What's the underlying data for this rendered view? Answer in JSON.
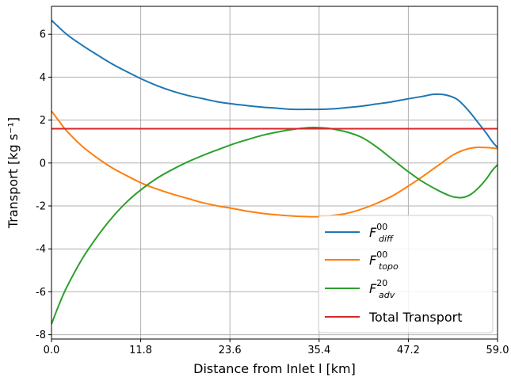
{
  "chart_data": {
    "type": "line",
    "xlabel": "Distance from Inlet l [km]",
    "ylabel": "Transport [kg s⁻¹]",
    "xlim": [
      0,
      59
    ],
    "ylim": [
      -8.2,
      7.3
    ],
    "xticks": [
      0,
      11.8,
      23.6,
      35.4,
      47.2,
      59
    ],
    "xtick_labels": [
      "0.0",
      "11.8",
      "23.6",
      "35.4",
      "47.2",
      "59.0"
    ],
    "yticks": [
      -8,
      -6,
      -4,
      -2,
      0,
      2,
      4,
      6
    ],
    "ytick_labels": [
      "-8",
      "-6",
      "-4",
      "-2",
      "0",
      "2",
      "4",
      "6"
    ],
    "grid": true,
    "legend_position": "lower-right",
    "series": [
      {
        "name": "F_diff^00",
        "legend": {
          "base": "F",
          "sup": "00",
          "sub": "diff"
        },
        "color": "#1f77b4",
        "x": [
          0,
          2,
          4,
          6,
          8,
          10,
          12,
          14,
          16,
          18,
          20,
          22,
          24,
          26,
          28,
          30,
          32,
          34,
          35.4,
          37,
          39,
          41,
          43,
          45,
          47,
          49,
          50.5,
          52,
          53.5,
          54.5,
          55.5,
          56.5,
          57.5,
          58.3,
          59
        ],
        "y": [
          6.65,
          6.0,
          5.5,
          5.05,
          4.62,
          4.25,
          3.9,
          3.6,
          3.35,
          3.15,
          3.0,
          2.85,
          2.75,
          2.67,
          2.6,
          2.55,
          2.5,
          2.5,
          2.5,
          2.52,
          2.58,
          2.65,
          2.75,
          2.85,
          2.98,
          3.1,
          3.2,
          3.18,
          3.0,
          2.7,
          2.3,
          1.85,
          1.4,
          1.0,
          0.72
        ]
      },
      {
        "name": "F_topo^00",
        "legend": {
          "base": "F",
          "sup": "00",
          "sub": "topo"
        },
        "color": "#ff7f0e",
        "x": [
          0,
          1,
          2,
          4,
          6,
          8,
          10,
          12,
          14,
          16,
          18,
          20,
          22,
          24,
          26,
          28,
          30,
          32,
          34,
          35.4,
          37,
          39,
          41,
          43,
          45,
          47,
          49,
          51,
          53,
          54.5,
          56,
          57.5,
          58.3,
          59
        ],
        "y": [
          2.42,
          1.95,
          1.5,
          0.8,
          0.25,
          -0.22,
          -0.6,
          -0.95,
          -1.22,
          -1.45,
          -1.65,
          -1.85,
          -2.0,
          -2.12,
          -2.25,
          -2.35,
          -2.42,
          -2.47,
          -2.5,
          -2.5,
          -2.45,
          -2.35,
          -2.15,
          -1.88,
          -1.55,
          -1.12,
          -0.65,
          -0.15,
          0.35,
          0.6,
          0.72,
          0.72,
          0.7,
          0.67
        ]
      },
      {
        "name": "F_adv^20",
        "legend": {
          "base": "F",
          "sup": "20",
          "sub": "adv"
        },
        "color": "#2ca02c",
        "x": [
          0,
          1,
          2,
          4,
          6,
          8,
          10,
          12,
          14,
          16,
          18,
          20,
          22,
          24,
          26,
          28,
          30,
          32,
          34,
          35.4,
          37,
          39,
          41,
          43,
          45,
          47,
          49,
          51,
          52.5,
          53.5,
          54.5,
          55.5,
          56.5,
          57.5,
          58.3,
          59
        ],
        "y": [
          -7.5,
          -6.6,
          -5.8,
          -4.5,
          -3.45,
          -2.55,
          -1.8,
          -1.2,
          -0.7,
          -0.3,
          0.05,
          0.35,
          0.62,
          0.88,
          1.1,
          1.3,
          1.45,
          1.57,
          1.65,
          1.65,
          1.6,
          1.45,
          1.2,
          0.75,
          0.2,
          -0.35,
          -0.85,
          -1.25,
          -1.5,
          -1.6,
          -1.6,
          -1.45,
          -1.15,
          -0.75,
          -0.35,
          -0.08
        ]
      },
      {
        "name": "Total Transport",
        "legend": {
          "base": "Total Transport"
        },
        "color": "#d62728",
        "x": [
          0,
          59
        ],
        "y": [
          1.6,
          1.6
        ]
      }
    ]
  }
}
